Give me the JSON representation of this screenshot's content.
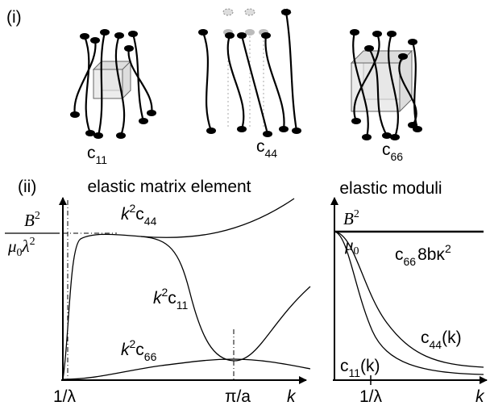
{
  "panel_i": {
    "label": "(i)",
    "items": [
      {
        "base": "c",
        "sub": "11"
      },
      {
        "base": "c",
        "sub": "44"
      },
      {
        "base": "c",
        "sub": "66"
      }
    ]
  },
  "panel_ii": {
    "label": "(ii)",
    "left": {
      "title": "elastic matrix element",
      "y_label": {
        "num": "B",
        "num_sup": "2",
        "den": "μ",
        "den_sub": "0",
        "den_rest": "λ",
        "den_sup": "2"
      },
      "curves": [
        {
          "prefix": "k",
          "sup": "2",
          "base": "c",
          "sub": "44"
        },
        {
          "prefix": "k",
          "sup": "2",
          "base": "c",
          "sub": "11"
        },
        {
          "prefix": "k",
          "sup": "2",
          "base": "c",
          "sub": "66"
        }
      ],
      "x_labels": [
        "1/λ",
        "π/a"
      ],
      "x_axis": "k"
    },
    "right": {
      "title": "elastic moduli",
      "y_label": {
        "num": "B",
        "num_sup": "2",
        "den": "μ",
        "den_sub": "0"
      },
      "curves": [
        {
          "base": "c",
          "sub": "66",
          "rest": "8bκ",
          "rest_sup": "2"
        },
        {
          "base": "c",
          "sub": "44",
          "rest": "(k)"
        },
        {
          "base": "c",
          "sub": "11",
          "rest": "(k)"
        }
      ],
      "x_labels": [
        "1/λ"
      ],
      "x_axis": "k"
    }
  }
}
